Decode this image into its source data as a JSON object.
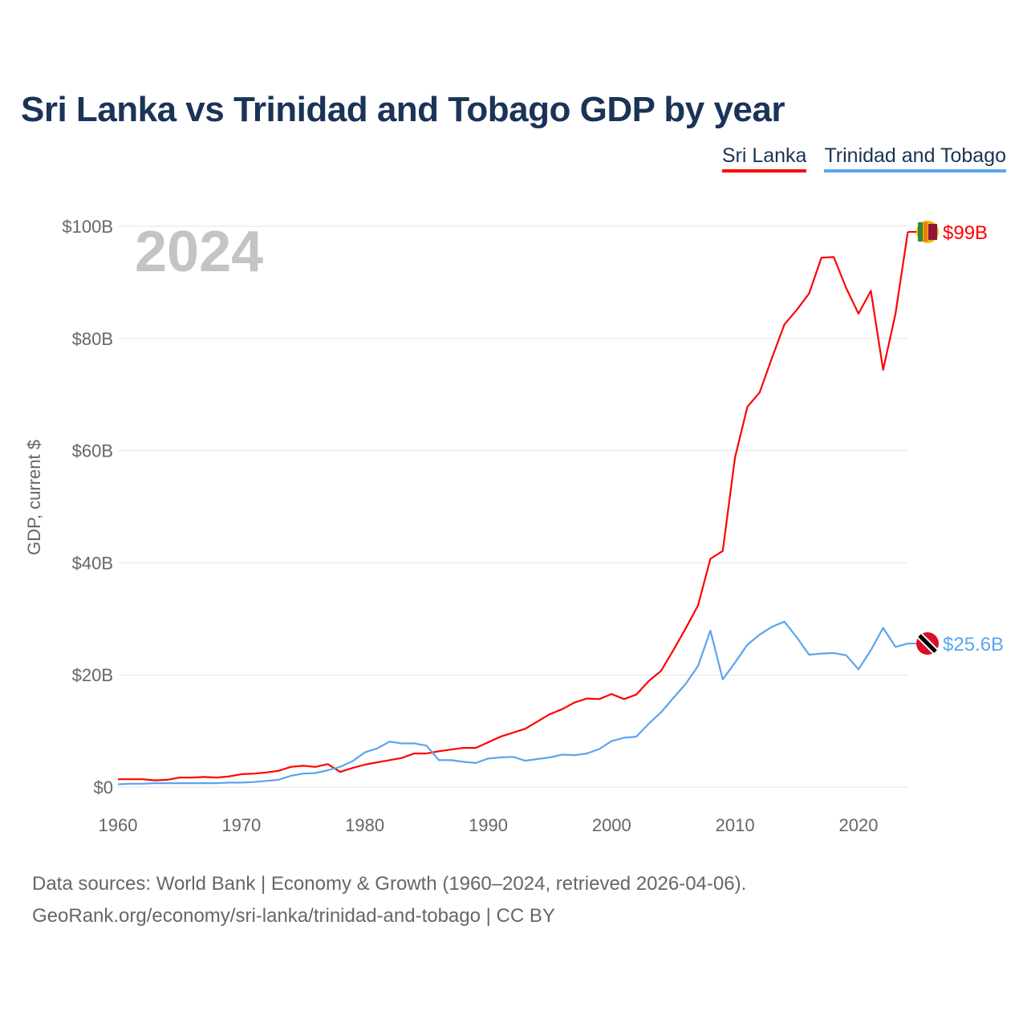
{
  "title": "Sri Lanka vs Trinidad and Tobago GDP by year",
  "footer": {
    "line1": "Data sources: World Bank | Economy & Growth (1960–2024, retrieved 2026-04-06).",
    "line2": "GeoRank.org/economy/sri-lanka/trinidad-and-tobago | CC BY"
  },
  "chart_data": {
    "type": "line",
    "title": "Sri Lanka vs Trinidad and Tobago GDP by year",
    "xlabel": "",
    "ylabel": "GDP, current $",
    "year_label": "2024",
    "xlim": [
      1960,
      2024
    ],
    "ylim": [
      0,
      100
    ],
    "x_ticks": [
      "1960",
      "1970",
      "1980",
      "1990",
      "2000",
      "2010",
      "2020"
    ],
    "y_ticks": [
      {
        "v": 0,
        "label": "$0"
      },
      {
        "v": 20,
        "label": "$20B"
      },
      {
        "v": 40,
        "label": "$40B"
      },
      {
        "v": 60,
        "label": "$60B"
      },
      {
        "v": 80,
        "label": "$80B"
      },
      {
        "v": 100,
        "label": "$100B"
      }
    ],
    "grid": true,
    "legend_position": "top-right",
    "x": [
      1960,
      1961,
      1962,
      1963,
      1964,
      1965,
      1966,
      1967,
      1968,
      1969,
      1970,
      1971,
      1972,
      1973,
      1974,
      1975,
      1976,
      1977,
      1978,
      1979,
      1980,
      1981,
      1982,
      1983,
      1984,
      1985,
      1986,
      1987,
      1988,
      1989,
      1990,
      1991,
      1992,
      1993,
      1994,
      1995,
      1996,
      1997,
      1998,
      1999,
      2000,
      2001,
      2002,
      2003,
      2004,
      2005,
      2006,
      2007,
      2008,
      2009,
      2010,
      2011,
      2012,
      2013,
      2014,
      2015,
      2016,
      2017,
      2018,
      2019,
      2020,
      2021,
      2022,
      2023,
      2024
    ],
    "series": [
      {
        "name": "Sri Lanka",
        "color": "#ff0000",
        "end_label": "$99B",
        "flag": "sri-lanka-flag",
        "values": [
          1.4,
          1.4,
          1.4,
          1.2,
          1.3,
          1.7,
          1.7,
          1.8,
          1.7,
          1.9,
          2.3,
          2.4,
          2.6,
          2.9,
          3.6,
          3.8,
          3.6,
          4.1,
          2.7,
          3.4,
          4.0,
          4.4,
          4.8,
          5.2,
          6.0,
          6.0,
          6.4,
          6.7,
          7.0,
          7.0,
          8.0,
          9.0,
          9.7,
          10.4,
          11.7,
          13.0,
          13.9,
          15.1,
          15.8,
          15.7,
          16.6,
          15.7,
          16.5,
          18.9,
          20.7,
          24.4,
          28.3,
          32.4,
          40.7,
          42.1,
          58.8,
          67.8,
          70.4,
          76.6,
          82.5,
          85.1,
          88.0,
          94.4,
          94.5,
          89.0,
          84.4,
          88.5,
          74.4,
          84.4,
          99.0
        ]
      },
      {
        "name": "Trinidad and Tobago",
        "color": "#5aa5ef",
        "end_label": "$25.6B",
        "flag": "trinidad-and-tobago-flag",
        "values": [
          0.5,
          0.6,
          0.6,
          0.7,
          0.7,
          0.7,
          0.7,
          0.7,
          0.7,
          0.8,
          0.8,
          0.9,
          1.1,
          1.3,
          2.0,
          2.4,
          2.5,
          3.0,
          3.6,
          4.6,
          6.2,
          6.9,
          8.1,
          7.8,
          7.8,
          7.4,
          4.8,
          4.8,
          4.5,
          4.3,
          5.1,
          5.3,
          5.4,
          4.7,
          5.0,
          5.3,
          5.8,
          5.7,
          6.0,
          6.8,
          8.2,
          8.8,
          9.0,
          11.3,
          13.3,
          15.9,
          18.4,
          21.6,
          27.9,
          19.2,
          22.2,
          25.4,
          27.2,
          28.6,
          29.5,
          26.7,
          23.6,
          23.8,
          23.9,
          23.5,
          21.0,
          24.4,
          28.4,
          25.0,
          25.6
        ]
      }
    ]
  }
}
